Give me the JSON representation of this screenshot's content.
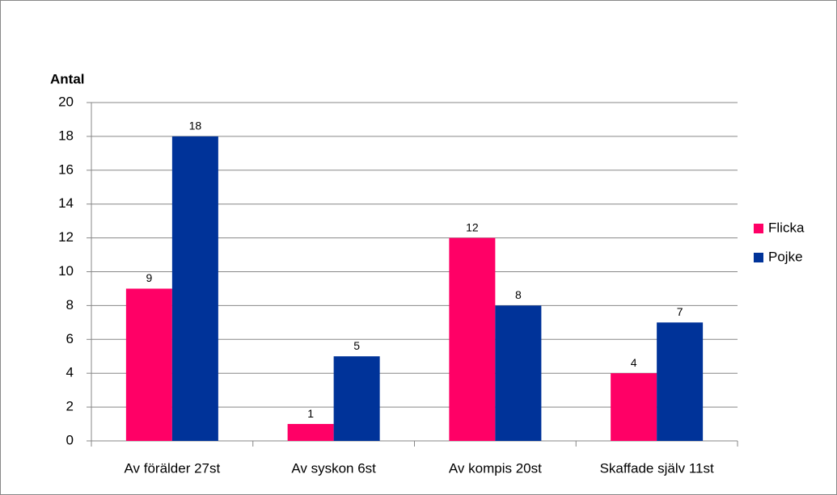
{
  "chart_data": {
    "type": "bar",
    "y_label": "Antal",
    "categories": [
      "Av förälder 27st",
      "Av syskon 6st",
      "Av kompis 20st",
      "Skaffade själv 11st"
    ],
    "series": [
      {
        "name": "Flicka",
        "color": "#ff0066",
        "values": [
          9,
          1,
          12,
          4
        ]
      },
      {
        "name": "Pojke",
        "color": "#003399",
        "values": [
          18,
          5,
          8,
          7
        ]
      }
    ],
    "ylim": [
      0,
      20
    ],
    "yticks": [
      0,
      2,
      4,
      6,
      8,
      10,
      12,
      14,
      16,
      18,
      20
    ],
    "grid": true,
    "legend": "right",
    "data_labels": true
  }
}
